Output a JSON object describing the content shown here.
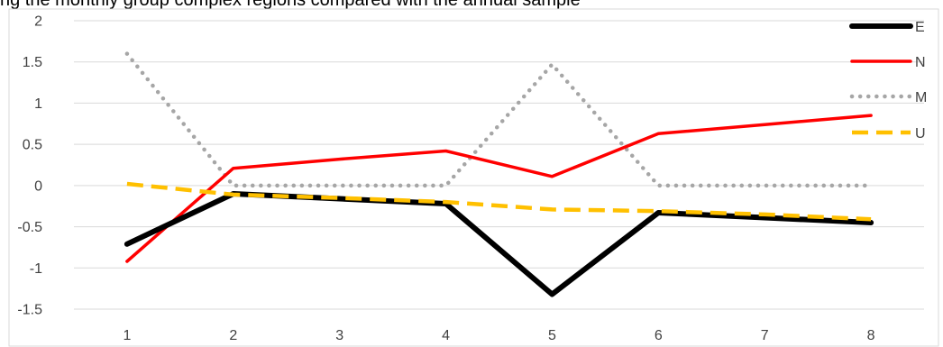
{
  "header": {
    "title": "ng the monthly group complex regions compared with the annual sample"
  },
  "chart_data": {
    "type": "line",
    "title": "ng the monthly group complex regions compared with the annual sample",
    "xlabel": "",
    "ylabel": "",
    "categories": [
      "1",
      "2",
      "3",
      "4",
      "5",
      "6",
      "7",
      "8"
    ],
    "ylim": [
      -1.5,
      2
    ],
    "yticks": [
      "2",
      "1.5",
      "1",
      "0.5",
      "0",
      "-0.5",
      "-1",
      "-1.5"
    ],
    "ytick_values": [
      2,
      1.5,
      1,
      0.5,
      0,
      -0.5,
      -1,
      -1.5
    ],
    "grid": true,
    "legend_position": "right",
    "series": [
      {
        "name": "E",
        "color": "#000000",
        "style": "solid-thick",
        "values": [
          -0.71,
          -0.1,
          -0.16,
          -0.22,
          -1.32,
          -0.33,
          -0.39,
          -0.45
        ]
      },
      {
        "name": "N",
        "color": "#ff0000",
        "style": "solid",
        "values": [
          -0.92,
          0.21,
          0.32,
          0.42,
          0.11,
          0.63,
          0.74,
          0.85
        ]
      },
      {
        "name": "M",
        "color": "#a6a6a6",
        "style": "dotted",
        "values": [
          1.6,
          0.0,
          0.0,
          0.0,
          1.47,
          0.0,
          0.0,
          0.0
        ]
      },
      {
        "name": "U",
        "color": "#ffc000",
        "style": "dashed",
        "values": [
          0.02,
          -0.11,
          -0.15,
          -0.2,
          -0.29,
          -0.31,
          -0.35,
          -0.41
        ]
      }
    ]
  }
}
